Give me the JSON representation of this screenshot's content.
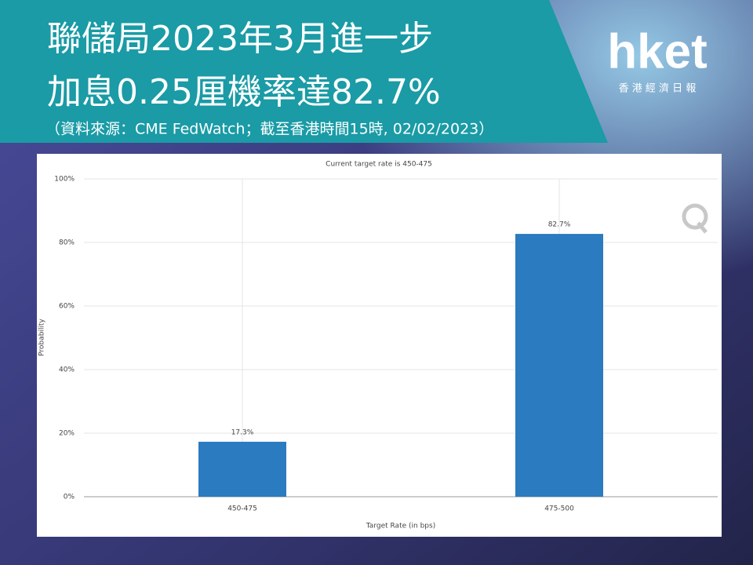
{
  "header": {
    "title_lines": [
      "聯儲局2023年3月進一步",
      "加息0.25厘機率達82.7%"
    ],
    "source": "（資料來源：CME FedWatch；截至香港時間15時, 02/02/2023）"
  },
  "logo": {
    "brand": "hket",
    "tagline": "香 港 經 濟 日 報"
  },
  "chart_data": {
    "type": "bar",
    "title": "Current target rate is 450-475",
    "categories": [
      "450-475",
      "475-500"
    ],
    "values": [
      17.3,
      82.7
    ],
    "value_labels": [
      "17.3%",
      "82.7%"
    ],
    "color": "#2a7bbf",
    "xlabel": "Target Rate (in bps)",
    "ylabel": "Probability",
    "ylim": [
      0,
      100
    ],
    "yticks": [
      {
        "value": 0,
        "label": "0%"
      },
      {
        "value": 20,
        "label": "20%"
      },
      {
        "value": 40,
        "label": "40%"
      },
      {
        "value": 60,
        "label": "60%"
      },
      {
        "value": 80,
        "label": "80%"
      },
      {
        "value": 100,
        "label": "100%"
      }
    ],
    "grid": true
  }
}
